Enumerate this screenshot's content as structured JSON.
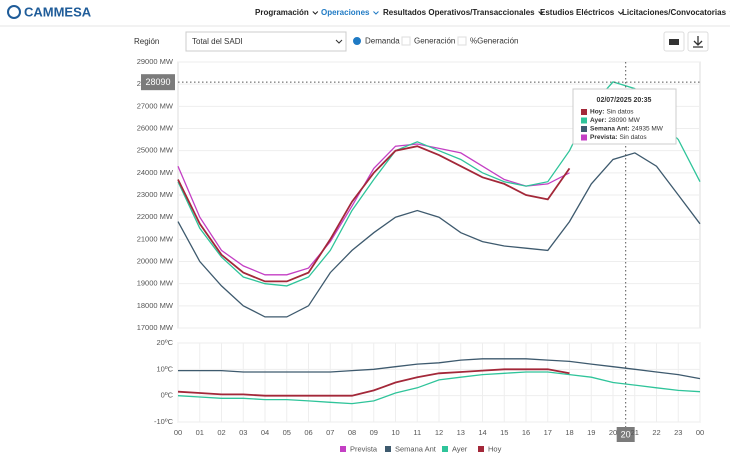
{
  "header": {
    "logo": "CAMMESA",
    "nav": [
      "Programación",
      "Operaciones",
      "Resultados Operativos/Transaccionales",
      "Estudios Eléctricos",
      "Licitaciones/Convocatorias"
    ],
    "active": 1
  },
  "controls": {
    "region_label": "Región",
    "region_value": "Total del SADI",
    "options": [
      "Demanda",
      "Generación",
      "%Generación"
    ],
    "selected": 0
  },
  "chart_data": [
    {
      "type": "line",
      "x": [
        0,
        1,
        2,
        3,
        4,
        5,
        6,
        7,
        8,
        9,
        10,
        11,
        12,
        13,
        14,
        15,
        16,
        17,
        18,
        19,
        20,
        21,
        22,
        23,
        24
      ],
      "xlim": [
        0,
        24
      ],
      "ylim": [
        17000,
        29000
      ],
      "yticks": [
        {
          "value": 17000,
          "label": "17000 MW"
        },
        {
          "value": 18000,
          "label": "18000 MW"
        },
        {
          "value": 19000,
          "label": "19000 MW"
        },
        {
          "value": 20000,
          "label": "20000 MW"
        },
        {
          "value": 21000,
          "label": "21000 MW"
        },
        {
          "value": 22000,
          "label": "22000 MW"
        },
        {
          "value": 23000,
          "label": "23000 MW"
        },
        {
          "value": 24000,
          "label": "24000 MW"
        },
        {
          "value": 25000,
          "label": "25000 MW"
        },
        {
          "value": 26000,
          "label": "26000 MW"
        },
        {
          "value": 27000,
          "label": "27000 MW"
        },
        {
          "value": 28000,
          "label": "28000 MW"
        },
        {
          "value": 29000,
          "label": "29000 MW"
        }
      ],
      "grid": true,
      "series": [
        {
          "name": "Prevista",
          "color": "#c43fc4",
          "values": [
            24300,
            22000,
            20500,
            19800,
            19400,
            19400,
            19700,
            20900,
            22500,
            24200,
            25200,
            25300,
            25100,
            24900,
            24300,
            23700,
            23400,
            23500,
            24000,
            null,
            null,
            null,
            null,
            null,
            null
          ]
        },
        {
          "name": "Semana Ant",
          "color": "#3e5a6e",
          "values": [
            21800,
            20000,
            18900,
            18000,
            17500,
            17500,
            18000,
            19500,
            20500,
            21300,
            22000,
            22300,
            22000,
            21300,
            20900,
            20700,
            20600,
            20500,
            21800,
            23500,
            24600,
            24900,
            24300,
            23000,
            21700
          ]
        },
        {
          "name": "Ayer",
          "color": "#2fc49a",
          "values": [
            23600,
            21500,
            20200,
            19300,
            19000,
            18900,
            19300,
            20500,
            22300,
            23700,
            25000,
            25400,
            25000,
            24600,
            24000,
            23600,
            23400,
            23600,
            25000,
            27000,
            28100,
            27800,
            26500,
            25500,
            23600
          ]
        },
        {
          "name": "Hoy",
          "color": "#a32839",
          "values": [
            23700,
            21700,
            20300,
            19500,
            19100,
            19100,
            19500,
            21000,
            22700,
            24000,
            25000,
            25200,
            24800,
            24300,
            23800,
            23500,
            23000,
            22800,
            24200,
            null,
            null,
            null,
            null,
            null,
            null
          ]
        }
      ],
      "crosshair": {
        "x": 20.5833,
        "y": 28090,
        "x_label": "20"
      },
      "tooltip": {
        "title": "02/07/2025 20:35",
        "rows": [
          {
            "label": "Hoy:",
            "value": "Sin datos",
            "color": "#a32839"
          },
          {
            "label": "Ayer:",
            "value": "28090 MW",
            "color": "#2fc49a"
          },
          {
            "label": "Semana Ant:",
            "value": "24935 MW",
            "color": "#3e5a6e"
          },
          {
            "label": "Prevista:",
            "value": "Sin datos",
            "color": "#c43fc4"
          }
        ]
      }
    },
    {
      "type": "line",
      "x": [
        0,
        1,
        2,
        3,
        4,
        5,
        6,
        7,
        8,
        9,
        10,
        11,
        12,
        13,
        14,
        15,
        16,
        17,
        18,
        19,
        20,
        21,
        22,
        23,
        24
      ],
      "xlim": [
        0,
        24
      ],
      "xticks": [
        {
          "value": 0,
          "label": "00"
        },
        {
          "value": 1,
          "label": "01"
        },
        {
          "value": 2,
          "label": "02"
        },
        {
          "value": 3,
          "label": "03"
        },
        {
          "value": 4,
          "label": "04"
        },
        {
          "value": 5,
          "label": "05"
        },
        {
          "value": 6,
          "label": "06"
        },
        {
          "value": 7,
          "label": "07"
        },
        {
          "value": 8,
          "label": "08"
        },
        {
          "value": 9,
          "label": "09"
        },
        10,
        11,
        12,
        13,
        14,
        15,
        16,
        17,
        18,
        19,
        20,
        21,
        22,
        23,
        {
          "value": 24,
          "label": "00"
        }
      ],
      "ylim": [
        -10,
        20
      ],
      "yticks": [
        {
          "value": -10,
          "label": "-10ºC"
        },
        {
          "value": 0,
          "label": "0ºC"
        },
        {
          "value": 10,
          "label": "10ºC"
        },
        {
          "value": 20,
          "label": "20ºC"
        }
      ],
      "grid": true,
      "legend": "bottom",
      "series": [
        {
          "name": "Prevista",
          "color": "#c43fc4",
          "values": [
            null,
            null,
            null,
            null,
            null,
            null,
            null,
            null,
            null,
            null,
            null,
            null,
            null,
            null,
            null,
            null,
            null,
            null,
            null,
            null,
            null,
            null,
            null,
            null,
            null
          ]
        },
        {
          "name": "Semana Ant",
          "color": "#3e5a6e",
          "values": [
            9.5,
            9.5,
            9.5,
            9,
            9,
            9,
            9,
            9,
            9.5,
            10,
            11,
            12,
            12.5,
            13.5,
            14,
            14,
            14,
            13.5,
            13,
            12,
            11,
            10,
            9,
            8,
            6.5
          ]
        },
        {
          "name": "Ayer",
          "color": "#2fc49a",
          "values": [
            0,
            -0.5,
            -1,
            -1,
            -1.5,
            -1.5,
            -2,
            -2.5,
            -3,
            -2,
            1,
            3,
            6,
            7,
            8,
            8.5,
            9,
            9,
            8,
            7,
            5,
            4,
            3,
            2,
            1.5
          ]
        },
        {
          "name": "Hoy",
          "color": "#a32839",
          "values": [
            1.5,
            1,
            0.5,
            0.5,
            0,
            0,
            0,
            0,
            0,
            2,
            5,
            7,
            8.5,
            9,
            9.5,
            10,
            10,
            10,
            8.5,
            null,
            null,
            null,
            null,
            null,
            null
          ]
        }
      ]
    }
  ]
}
